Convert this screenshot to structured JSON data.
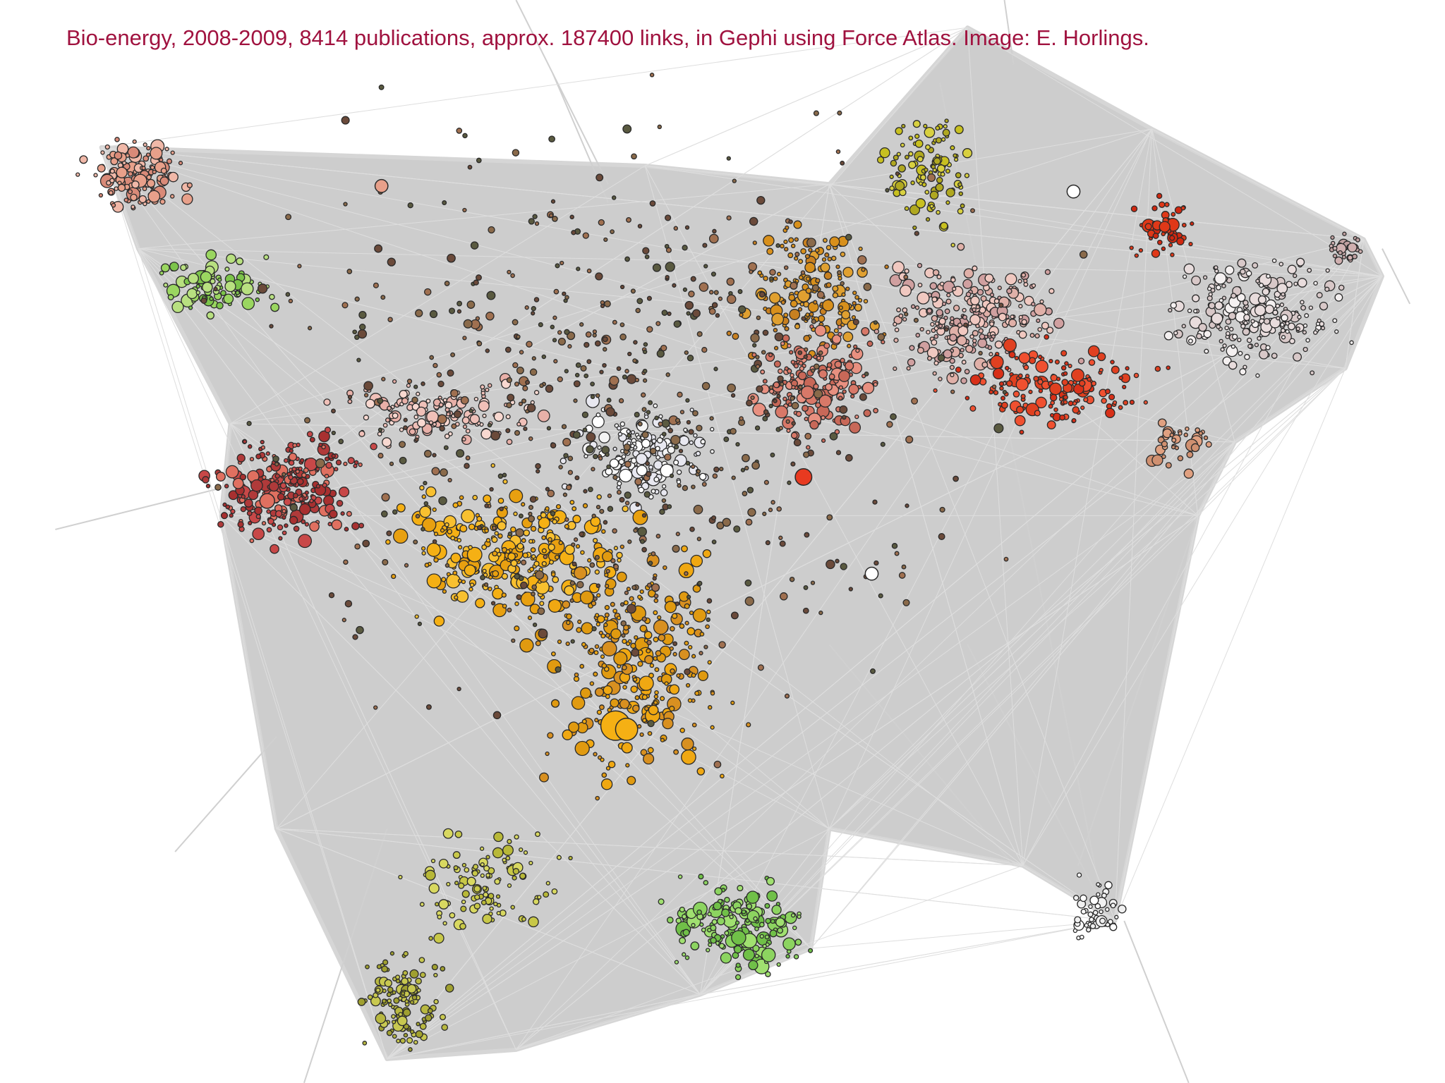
{
  "caption": "Bio-energy, 2008-2009, 8414 publications, approx. 187400 links, in Gephi using Force Atlas. Image: E. Horlings."
}
